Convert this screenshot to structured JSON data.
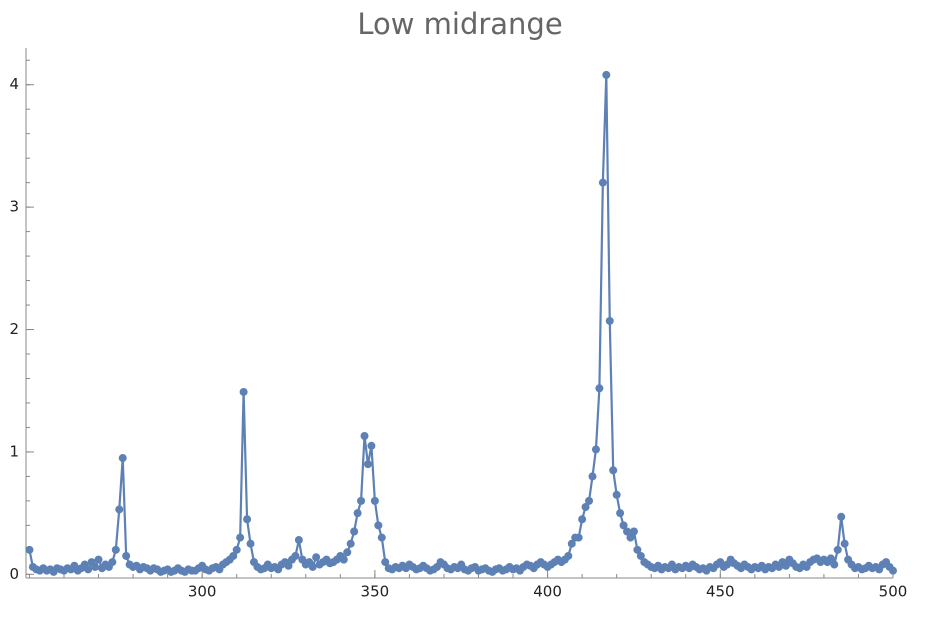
{
  "chart_data": {
    "type": "line",
    "title": "Low midrange",
    "x": [
      250,
      251,
      252,
      253,
      254,
      255,
      256,
      257,
      258,
      259,
      260,
      261,
      262,
      263,
      264,
      265,
      266,
      267,
      268,
      269,
      270,
      271,
      272,
      273,
      274,
      275,
      276,
      277,
      278,
      279,
      280,
      281,
      282,
      283,
      284,
      285,
      286,
      287,
      288,
      289,
      290,
      291,
      292,
      293,
      294,
      295,
      296,
      297,
      298,
      299,
      300,
      301,
      302,
      303,
      304,
      305,
      306,
      307,
      308,
      309,
      310,
      311,
      312,
      313,
      314,
      315,
      316,
      317,
      318,
      319,
      320,
      321,
      322,
      323,
      324,
      325,
      326,
      327,
      328,
      329,
      330,
      331,
      332,
      333,
      334,
      335,
      336,
      337,
      338,
      339,
      340,
      341,
      342,
      343,
      344,
      345,
      346,
      347,
      348,
      349,
      350,
      351,
      352,
      353,
      354,
      355,
      356,
      357,
      358,
      359,
      360,
      361,
      362,
      363,
      364,
      365,
      366,
      367,
      368,
      369,
      370,
      371,
      372,
      373,
      374,
      375,
      376,
      377,
      378,
      379,
      380,
      381,
      382,
      383,
      384,
      385,
      386,
      387,
      388,
      389,
      390,
      391,
      392,
      393,
      394,
      395,
      396,
      397,
      398,
      399,
      400,
      401,
      402,
      403,
      404,
      405,
      406,
      407,
      408,
      409,
      410,
      411,
      412,
      413,
      414,
      415,
      416,
      417,
      418,
      419,
      420,
      421,
      422,
      423,
      424,
      425,
      426,
      427,
      428,
      429,
      430,
      431,
      432,
      433,
      434,
      435,
      436,
      437,
      438,
      439,
      440,
      441,
      442,
      443,
      444,
      445,
      446,
      447,
      448,
      449,
      450,
      451,
      452,
      453,
      454,
      455,
      456,
      457,
      458,
      459,
      460,
      461,
      462,
      463,
      464,
      465,
      466,
      467,
      468,
      469,
      470,
      471,
      472,
      473,
      474,
      475,
      476,
      477,
      478,
      479,
      480,
      481,
      482,
      483,
      484,
      485,
      486,
      487,
      488,
      489,
      490,
      491,
      492,
      493,
      494,
      495,
      496,
      497,
      498,
      499,
      500
    ],
    "series": [
      {
        "color": "#5e81b5",
        "values": [
          0.2,
          0.06,
          0.04,
          0.03,
          0.05,
          0.03,
          0.04,
          0.02,
          0.05,
          0.04,
          0.03,
          0.05,
          0.04,
          0.07,
          0.03,
          0.05,
          0.08,
          0.04,
          0.1,
          0.06,
          0.12,
          0.05,
          0.08,
          0.06,
          0.1,
          0.2,
          0.53,
          0.95,
          0.15,
          0.08,
          0.06,
          0.07,
          0.04,
          0.06,
          0.05,
          0.03,
          0.05,
          0.04,
          0.02,
          0.03,
          0.04,
          0.02,
          0.03,
          0.05,
          0.03,
          0.02,
          0.04,
          0.03,
          0.03,
          0.05,
          0.07,
          0.04,
          0.03,
          0.05,
          0.06,
          0.04,
          0.08,
          0.1,
          0.12,
          0.15,
          0.2,
          0.3,
          1.49,
          0.45,
          0.25,
          0.1,
          0.06,
          0.04,
          0.05,
          0.08,
          0.05,
          0.06,
          0.04,
          0.08,
          0.1,
          0.07,
          0.12,
          0.15,
          0.28,
          0.12,
          0.08,
          0.1,
          0.06,
          0.14,
          0.08,
          0.1,
          0.12,
          0.09,
          0.1,
          0.12,
          0.15,
          0.12,
          0.18,
          0.25,
          0.35,
          0.5,
          0.6,
          1.13,
          0.9,
          1.05,
          0.6,
          0.4,
          0.3,
          0.1,
          0.05,
          0.04,
          0.06,
          0.05,
          0.07,
          0.05,
          0.08,
          0.06,
          0.04,
          0.05,
          0.07,
          0.05,
          0.03,
          0.04,
          0.06,
          0.1,
          0.08,
          0.05,
          0.04,
          0.06,
          0.05,
          0.08,
          0.04,
          0.03,
          0.05,
          0.06,
          0.03,
          0.04,
          0.05,
          0.03,
          0.02,
          0.04,
          0.05,
          0.03,
          0.04,
          0.06,
          0.04,
          0.05,
          0.03,
          0.06,
          0.08,
          0.07,
          0.05,
          0.08,
          0.1,
          0.08,
          0.06,
          0.08,
          0.1,
          0.12,
          0.1,
          0.12,
          0.15,
          0.25,
          0.3,
          0.3,
          0.45,
          0.55,
          0.6,
          0.8,
          1.02,
          1.52,
          3.2,
          4.08,
          2.07,
          0.85,
          0.65,
          0.5,
          0.4,
          0.35,
          0.3,
          0.35,
          0.2,
          0.15,
          0.1,
          0.08,
          0.06,
          0.05,
          0.07,
          0.04,
          0.06,
          0.05,
          0.08,
          0.04,
          0.06,
          0.05,
          0.07,
          0.05,
          0.08,
          0.06,
          0.04,
          0.05,
          0.03,
          0.06,
          0.05,
          0.08,
          0.1,
          0.06,
          0.08,
          0.12,
          0.09,
          0.07,
          0.05,
          0.08,
          0.06,
          0.04,
          0.06,
          0.05,
          0.07,
          0.04,
          0.06,
          0.05,
          0.08,
          0.06,
          0.1,
          0.07,
          0.12,
          0.09,
          0.06,
          0.05,
          0.08,
          0.06,
          0.1,
          0.12,
          0.13,
          0.1,
          0.12,
          0.1,
          0.13,
          0.08,
          0.2,
          0.47,
          0.25,
          0.12,
          0.08,
          0.05,
          0.06,
          0.04,
          0.05,
          0.07,
          0.05,
          0.06,
          0.04,
          0.08,
          0.1,
          0.06,
          0.03
        ]
      }
    ],
    "xlim": [
      249,
      500
    ],
    "ylim": [
      -0.03,
      4.3
    ],
    "xticks": [
      300,
      350,
      400,
      450,
      500
    ],
    "yticks": [
      0,
      1,
      2,
      3,
      4
    ]
  }
}
